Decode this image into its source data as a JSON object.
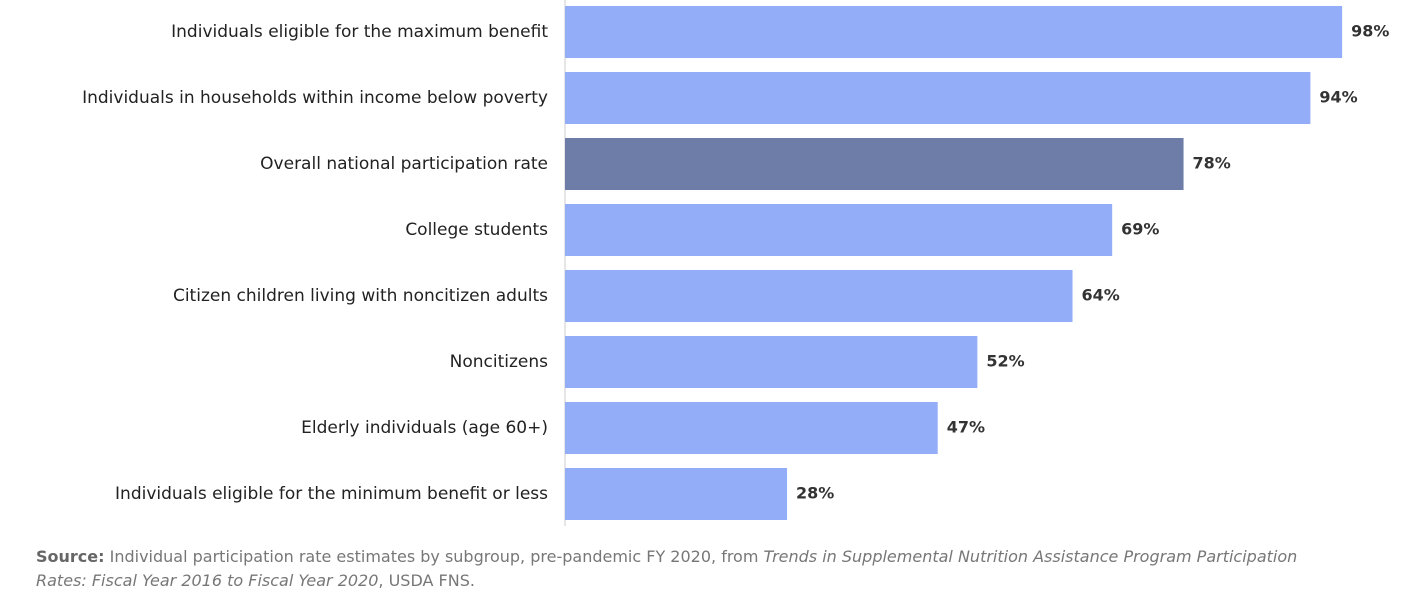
{
  "chart_data": {
    "type": "hbar",
    "categories": [
      "Individuals eligible for the maximum benefit",
      "Individuals in households within income below poverty",
      "Overall national participation rate",
      "College students",
      "Citizen children living with noncitizen adults",
      "Noncitizens",
      "Elderly individuals (age 60+)",
      "Individuals eligible for the minimum benefit or less"
    ],
    "values": [
      98,
      94,
      78,
      69,
      64,
      52,
      47,
      28
    ],
    "value_labels": [
      "98%",
      "94%",
      "78%",
      "69%",
      "64%",
      "52%",
      "47%",
      "28%"
    ],
    "colors": [
      "#93adf8",
      "#93adf8",
      "#6e7ca8",
      "#93adf8",
      "#93adf8",
      "#93adf8",
      "#93adf8",
      "#93adf8"
    ],
    "xlim": [
      0,
      100
    ],
    "source_label": "Source:",
    "source_text": "Individual participation rate estimates by subgroup, pre-pandemic FY 2020, from",
    "source_title": "Trends in Supplemental Nutrition Assistance Program Participation Rates: Fiscal Year 2016 to Fiscal Year 2020",
    "source_suffix": ", USDA FNS."
  }
}
